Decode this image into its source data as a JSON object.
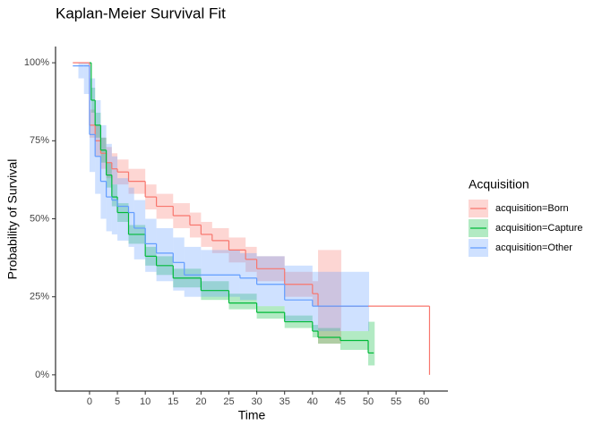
{
  "chart_data": {
    "type": "survival-step",
    "title": "Kaplan-Meier Survival Fit",
    "x_label": "Time",
    "y_label": "Probability of Survival",
    "legend_title": "Acquisition",
    "legend_position": "right",
    "grid": false,
    "xlim": [
      -6.1,
      64.3
    ],
    "ylim": [
      -5.2,
      105.2
    ],
    "xticks": [
      0,
      5,
      10,
      15,
      20,
      25,
      30,
      35,
      40,
      45,
      50,
      55,
      60
    ],
    "yticks": [
      {
        "value": 0,
        "label": "0%"
      },
      {
        "value": 25,
        "label": "25%"
      },
      {
        "value": 50,
        "label": "50%"
      },
      {
        "value": 75,
        "label": "75%"
      },
      {
        "value": 100,
        "label": "100%"
      }
    ],
    "series": [
      {
        "name": "acquisition=Born",
        "color": "#F8766D",
        "x": [
          -3,
          0,
          1,
          2,
          3,
          4,
          5,
          7,
          10,
          12,
          15,
          18,
          20,
          22,
          25,
          28,
          30,
          35,
          40,
          41,
          45,
          61
        ],
        "values": [
          100,
          80,
          75,
          71,
          68,
          66,
          65,
          62,
          57,
          54,
          51,
          48,
          45,
          43,
          40,
          37,
          34,
          29,
          26,
          22,
          22,
          0
        ],
        "upper": [
          null,
          85,
          80,
          76,
          73,
          71,
          69,
          66,
          61,
          58,
          55,
          52,
          49,
          47,
          44,
          41,
          38,
          33,
          30,
          40,
          40,
          null
        ],
        "lower": [
          null,
          76,
          70,
          66,
          63,
          61,
          61,
          58,
          53,
          50,
          47,
          44,
          41,
          39,
          36,
          33,
          30,
          25,
          22,
          10,
          10,
          null
        ]
      },
      {
        "name": "acquisition=Capture",
        "color": "#00BA38",
        "x": [
          0,
          0.3,
          1,
          2,
          3,
          4,
          5,
          7,
          10,
          12,
          15,
          20,
          25,
          30,
          35,
          40,
          41,
          45,
          50,
          51
        ],
        "values": [
          100,
          88,
          80,
          72,
          64,
          57,
          52,
          45,
          38,
          35,
          31,
          27,
          23,
          20,
          17,
          14,
          12,
          11,
          7,
          7
        ],
        "upper": [
          100,
          92,
          84,
          76,
          68,
          61,
          55,
          48,
          41,
          38,
          34,
          30,
          26,
          22,
          19,
          16,
          15,
          14,
          17,
          17
        ],
        "lower": [
          100,
          84,
          76,
          68,
          60,
          54,
          49,
          42,
          35,
          32,
          28,
          24,
          21,
          18,
          15,
          12,
          10,
          8,
          3,
          3
        ]
      },
      {
        "name": "acquisition=Other",
        "color": "#619CFF",
        "x": [
          -3,
          -2,
          -1,
          0,
          1,
          2,
          3,
          4,
          5,
          7,
          8,
          10,
          12,
          15,
          17,
          20,
          27,
          30,
          35,
          40,
          50
        ],
        "values": [
          99,
          99,
          99,
          77,
          70,
          62,
          57,
          56,
          54,
          52,
          47,
          42,
          39,
          36,
          32,
          32,
          31,
          29,
          24,
          22,
          22
        ],
        "upper": [
          99,
          100,
          100,
          95,
          88,
          80,
          74,
          70,
          63,
          60,
          56,
          50,
          47,
          44,
          41,
          40,
          39,
          38,
          35,
          33,
          33
        ],
        "lower": [
          99,
          95,
          90,
          65,
          58,
          50,
          46,
          45,
          43,
          41,
          37,
          33,
          30,
          27,
          25,
          25,
          24,
          22,
          17,
          14,
          14
        ]
      }
    ]
  }
}
